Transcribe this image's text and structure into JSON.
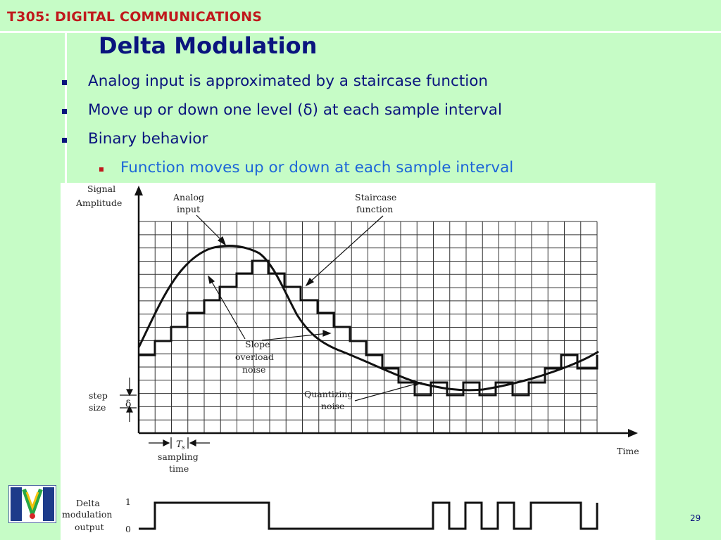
{
  "header": {
    "course": "T305: DIGITAL COMMUNICATIONS"
  },
  "slide": {
    "title": "Delta Modulation",
    "bullets": [
      "Analog input is approximated by a staircase function",
      "Move up or down one level (δ) at each sample interval",
      "Binary behavior"
    ],
    "sub_bullets": [
      "Function moves up or down at each sample interval"
    ],
    "page_number": "29"
  },
  "figure": {
    "y_axis_label_1": "Signal",
    "y_axis_label_2": "Amplitude",
    "x_axis_label": "Time",
    "analog_label_1": "Analog",
    "analog_label_2": "input",
    "staircase_label_1": "Staircase",
    "staircase_label_2": "function",
    "slope_label_1": "Slope",
    "slope_label_2": "overload",
    "slope_label_3": "noise",
    "quant_label_1": "Quantizing",
    "quant_label_2": "noise",
    "step_label_1": "step",
    "step_label_2": "size",
    "delta_symbol": "δ",
    "ts_symbol": "T",
    "ts_sub": "s",
    "sampling_label_1": "sampling",
    "sampling_label_2": "time",
    "output_label_1": "Delta",
    "output_label_2": "modulation",
    "output_label_3": "output",
    "level_high": "1",
    "level_low": "0",
    "delta_output_bits": [
      1,
      1,
      1,
      1,
      1,
      1,
      1,
      0,
      0,
      0,
      0,
      0,
      0,
      0,
      0,
      0,
      0,
      1,
      0,
      1,
      0,
      1,
      0,
      1,
      1,
      1,
      0,
      1
    ]
  },
  "colors": {
    "background": "#c6fcc6",
    "title": "#0a147e",
    "course": "#c0181c",
    "sub_bullet": "#1d66d8"
  },
  "icons": {
    "logo": "university-logo-icon"
  }
}
